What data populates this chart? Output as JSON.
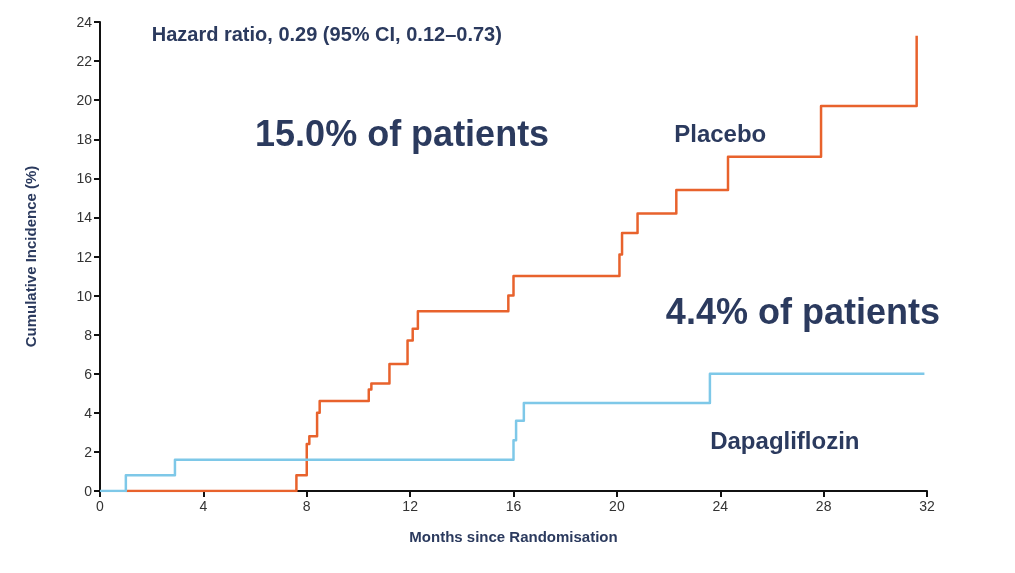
{
  "chart_data": {
    "type": "step",
    "xlabel": "Months since Randomisation",
    "ylabel": "Cumulative Incidence (%)",
    "xlim": [
      0,
      32
    ],
    "xticks": [
      0,
      4,
      8,
      12,
      16,
      20,
      24,
      28,
      32
    ],
    "ylim": [
      0,
      24
    ],
    "yticks": [
      0,
      2,
      4,
      6,
      8,
      10,
      12,
      14,
      16,
      18,
      20,
      22,
      24
    ],
    "grid": false,
    "legend": false,
    "marker": "none",
    "line_style": "solid",
    "annotations": [
      "Hazard ratio, 0.29 (95% CI, 0.12–0.73)",
      "15.0% of patients",
      "4.4% of patients"
    ],
    "series": [
      {
        "name": "Placebo",
        "color": "#e8622c",
        "x": [
          1.0,
          7.6,
          8.0,
          8.1,
          8.4,
          8.5,
          10.4,
          10.5,
          11.2,
          11.9,
          12.1,
          12.3,
          15.8,
          16.0,
          20.1,
          20.2,
          20.8,
          22.3,
          24.3,
          27.9,
          31.6
        ],
        "values": [
          0,
          0.8,
          2.4,
          2.8,
          4.0,
          4.6,
          5.2,
          5.5,
          6.5,
          7.7,
          8.3,
          9.2,
          10.0,
          11.0,
          12.1,
          13.2,
          14.2,
          15.4,
          17.1,
          19.7,
          23.3
        ]
      },
      {
        "name": "Dapagliflozin",
        "color": "#7ec8e8",
        "x": [
          0,
          1.0,
          2.9,
          16.0,
          16.1,
          16.4,
          23.6,
          31.9
        ],
        "values": [
          0,
          0.8,
          1.6,
          2.6,
          3.6,
          4.5,
          6.0,
          6.0
        ]
      }
    ]
  }
}
